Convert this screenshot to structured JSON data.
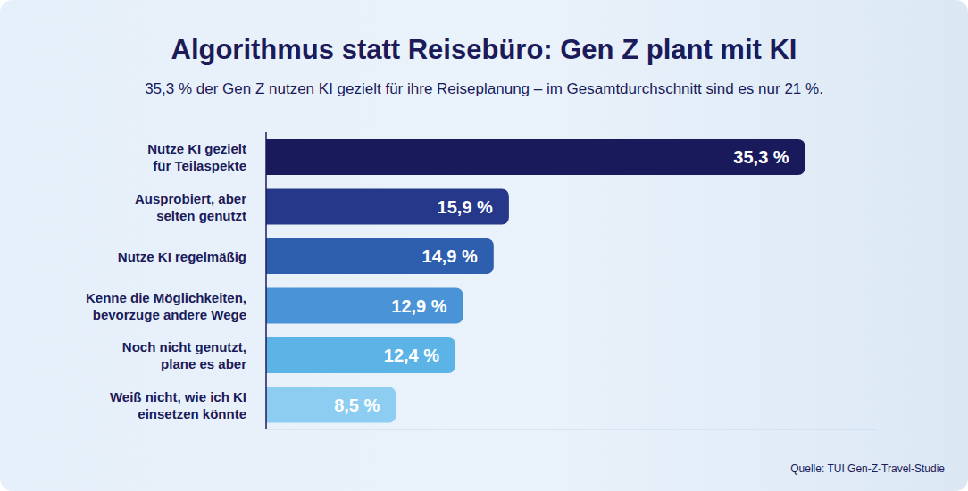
{
  "chart_data": {
    "type": "bar",
    "orientation": "horizontal",
    "title": "Algorithmus statt Reisebüro: Gen Z plant mit KI",
    "subtitle": "35,3 % der Gen Z nutzen KI gezielt für ihre Reiseplanung – im Gesamtdurchschnitt sind es nur 21 %.",
    "source": "Quelle: TUI Gen-Z-Travel-Studie",
    "categories": [
      "Nutze KI gezielt\nfür Teilaspekte",
      "Ausprobiert, aber\nselten genutzt",
      "Nutze KI regelmäßig",
      "Kenne die Möglichkeiten,\nbevorzuge andere Wege",
      "Noch nicht genutzt,\nplane es aber",
      "Weiß nicht, wie ich KI\neinsetzen könnte"
    ],
    "values": [
      35.3,
      15.9,
      14.9,
      12.9,
      12.4,
      8.5
    ],
    "value_labels": [
      "35,3 %",
      "15,9 %",
      "14,9 %",
      "12,9 %",
      "12,4 %",
      "8,5 %"
    ],
    "colors": [
      "#191a5c",
      "#25388a",
      "#2d5fae",
      "#4a93d6",
      "#5cb4e6",
      "#8ccdf1"
    ],
    "xlim": [
      0,
      40
    ],
    "data_labels": true,
    "tick_labels": false,
    "grid": false
  }
}
